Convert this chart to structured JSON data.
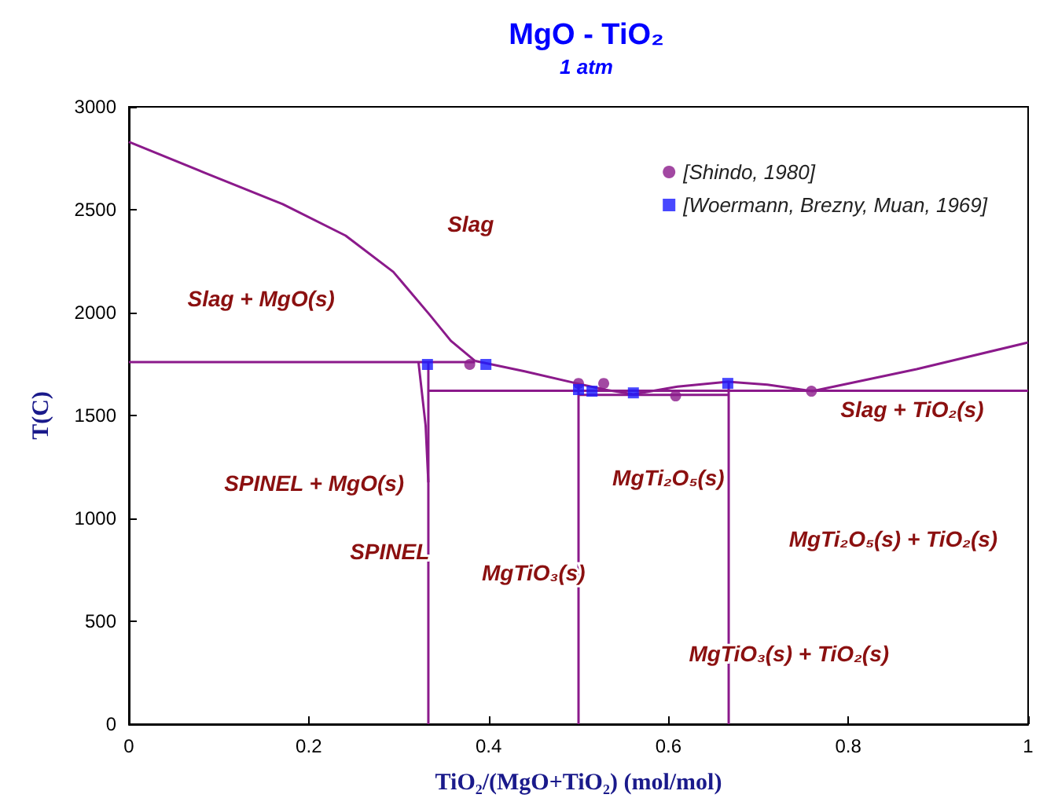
{
  "chart_data": {
    "type": "line",
    "title": "MgO - TiO₂",
    "subtitle": "1 atm",
    "xlabel": "TiO₂/(MgO+TiO₂) (mol/mol)",
    "ylabel": "T(C)",
    "xlim": [
      0,
      1
    ],
    "xticks": [
      0,
      0.2,
      0.4,
      0.6,
      0.8,
      1
    ],
    "ylim": [
      0,
      3000
    ],
    "yticks": [
      0,
      500,
      1000,
      1500,
      2000,
      2500,
      3000
    ],
    "grid": false,
    "legend": "top right",
    "series": [
      {
        "color": "#8b1a8b",
        "x": [
          0,
          0.084,
          0.171,
          0.241,
          0.294,
          0.334,
          0.358,
          0.385
        ],
        "values": [
          2830,
          2680,
          2527,
          2374,
          2198,
          1992,
          1863,
          1765
        ]
      },
      {
        "color": "#8b1a8b",
        "x": [
          0,
          0.385
        ],
        "values": [
          1760,
          1760
        ]
      },
      {
        "color": "#8b1a8b",
        "x": [
          0.385,
          0.44,
          0.498,
          0.53,
          0.561,
          0.61,
          0.666,
          0.71,
          0.76,
          0.876,
          1
        ],
        "values": [
          1765,
          1715,
          1656,
          1625,
          1603,
          1640,
          1664,
          1650,
          1618,
          1725,
          1855
        ]
      },
      {
        "color": "#8b1a8b",
        "x": [
          0.333,
          1
        ],
        "values": [
          1620,
          1620
        ]
      },
      {
        "color": "#8b1a8b",
        "x": [
          0.5,
          0.667
        ],
        "values": [
          1600,
          1600
        ]
      },
      {
        "color": "#8b1a8b",
        "x": [
          0.322,
          0.33,
          0.333
        ],
        "values": [
          1760,
          1450,
          1175
        ]
      },
      {
        "color": "#8b1a8b",
        "x": [
          0.333,
          0.333
        ],
        "values": [
          1760,
          0
        ]
      },
      {
        "color": "#8b1a8b",
        "x": [
          0.5,
          0.5
        ],
        "values": [
          1656,
          0
        ]
      },
      {
        "color": "#8b1a8b",
        "x": [
          0.667,
          0.667
        ],
        "values": [
          1664,
          0
        ]
      },
      {
        "type": "scatter",
        "name": "[Shindo, 1980]",
        "color": "#8b1a8b",
        "marker": "circle",
        "x": [
          0.379,
          0.5,
          0.528,
          0.608,
          0.759
        ],
        "values": [
          1748,
          1656,
          1656,
          1595,
          1618
        ]
      },
      {
        "type": "scatter",
        "name": "[Woermann, Brezny, Muan, 1969]",
        "color": "#1a1aff",
        "marker": "square",
        "x": [
          0.332,
          0.397,
          0.5,
          0.515,
          0.561,
          0.666
        ],
        "values": [
          1748,
          1748,
          1626,
          1618,
          1610,
          1656
        ]
      }
    ],
    "annotations": [
      "Slag",
      "Slag + MgO(s)",
      "SPINEL + MgO(s)",
      "SPINEL",
      "MgTiO₃(s)",
      "MgTi₂O₅(s)",
      "Slag + TiO₂(s)",
      "MgTi₂O₅(s) + TiO₂(s)",
      "MgTiO₃(s) + TiO₂(s)"
    ]
  }
}
